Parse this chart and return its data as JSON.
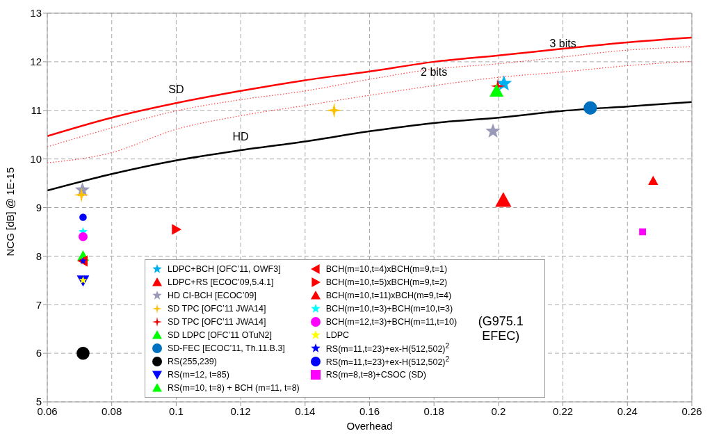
{
  "chart_data": {
    "type": "scatter",
    "xlabel": "Overhead",
    "ylabel": "NCG [dB] @ 1E-15",
    "xlim": [
      0.06,
      0.26
    ],
    "xticks": [
      0.06,
      0.08,
      0.1,
      0.12,
      0.14,
      0.16,
      0.18,
      0.2,
      0.22,
      0.24,
      0.26
    ],
    "ylim": [
      5,
      13
    ],
    "yticks": [
      5,
      6,
      7,
      8,
      9,
      10,
      11,
      12,
      13
    ],
    "grid": true,
    "legend": "bottom",
    "series": [
      {
        "type": "line",
        "color": "#ff0000",
        "line_style": "solid",
        "marker": "none",
        "x": [
          0.06,
          0.08,
          0.1,
          0.12,
          0.14,
          0.16,
          0.18,
          0.2,
          0.22,
          0.24,
          0.26
        ],
        "values": [
          10.47,
          10.85,
          11.15,
          11.4,
          11.62,
          11.8,
          12.0,
          12.13,
          12.27,
          12.4,
          12.5
        ]
      },
      {
        "type": "line",
        "color": "#ff4040",
        "line_style": "dotted",
        "marker": "none",
        "x": [
          0.06,
          0.08,
          0.1,
          0.12,
          0.14,
          0.16,
          0.18,
          0.2,
          0.22,
          0.24,
          0.26
        ],
        "values": [
          10.25,
          10.64,
          10.99,
          11.22,
          11.4,
          11.64,
          11.85,
          11.96,
          12.1,
          12.24,
          12.31
        ]
      },
      {
        "type": "line",
        "color": "#ff4040",
        "line_style": "dotted",
        "marker": "none",
        "x": [
          0.06,
          0.08,
          0.1,
          0.12,
          0.14,
          0.16,
          0.18,
          0.2,
          0.22,
          0.24,
          0.26
        ],
        "values": [
          9.92,
          10.13,
          10.61,
          10.89,
          11.1,
          11.31,
          11.51,
          11.68,
          11.79,
          11.92,
          12.01
        ]
      },
      {
        "type": "line",
        "color": "#000000",
        "line_style": "solid",
        "marker": "none",
        "x": [
          0.06,
          0.08,
          0.1,
          0.12,
          0.14,
          0.16,
          0.18,
          0.2,
          0.22,
          0.24,
          0.26
        ],
        "values": [
          9.35,
          9.69,
          9.97,
          10.18,
          10.36,
          10.57,
          10.74,
          10.85,
          10.99,
          11.08,
          11.17
        ]
      },
      {
        "name": "LDPC+BCH [OFC’11, OWF3]",
        "color": "#00b0f0",
        "marker": "star",
        "x": [
          0.2017
        ],
        "values": [
          11.55
        ]
      },
      {
        "name": "LDPC+RS [ECOC’09,5.4.1]",
        "color": "#ff0000",
        "marker": "triangle",
        "x": [
          0.2015
        ],
        "values": [
          9.15
        ]
      },
      {
        "name": "HD CI-BCH [ECOC’09]",
        "color": "#9a9ab8",
        "marker": "star",
        "x": [
          0.1983,
          0.0709
        ],
        "values": [
          10.57,
          9.36
        ]
      },
      {
        "name": "SD TPC [OFC’11 JWA14]",
        "color": "#ffc000",
        "marker": "star4",
        "x": [
          0.149,
          0.0706
        ],
        "values": [
          11.0,
          9.26
        ]
      },
      {
        "name": "SD TPC [OFC’11 JWA14]",
        "color": "#ff0000",
        "marker": "star4",
        "x": [
          0.1998
        ],
        "values": [
          11.5
        ]
      },
      {
        "name": "SD LDPC [OFC’11 OTuN2]",
        "color": "#00ff00",
        "marker": "triangle",
        "x": [
          0.1994
        ],
        "values": [
          11.4
        ]
      },
      {
        "name": "SD-FEC [ECOC’11, Th.11.B.3]",
        "color": "#0070c0",
        "marker": "circle",
        "x": [
          0.2285
        ],
        "values": [
          11.05
        ]
      },
      {
        "name": "RS(255,239)",
        "color": "#000000",
        "marker": "circle",
        "x": [
          0.0711
        ],
        "values": [
          6.0
        ]
      },
      {
        "name": "RS(m=12, t=85)",
        "color": "#0000ff",
        "marker": "triangle-down",
        "x": [
          0.0711
        ],
        "values": [
          7.5
        ]
      },
      {
        "name": "RS(m=10, t=8)  + BCH (m=11, t=8)",
        "color": "#00ff00",
        "marker": "triangle",
        "x": [
          0.0711
        ],
        "values": [
          8.0
        ]
      },
      {
        "name": "BCH(m=10,t=4)xBCH(m=9,t=1)",
        "color": "#ff0000",
        "marker": "triangle-left",
        "x": [
          0.0711
        ],
        "values": [
          7.9
        ]
      },
      {
        "name": "BCH(m=10,t=5)xBCH(m=9,t=2)",
        "color": "#ff0000",
        "marker": "triangle-right",
        "x": [
          0.1
        ],
        "values": [
          8.55
        ]
      },
      {
        "name": "BCH(m=10,t=11)xBCH(m=9,t=4)",
        "color": "#ff0000",
        "marker": "triangle",
        "x": [
          0.248
        ],
        "values": [
          9.55
        ]
      },
      {
        "name": "BCH(m=10,t=3)+BCH(m=10,t=3)",
        "color": "#00ffff",
        "marker": "star",
        "x": [
          0.0711
        ],
        "values": [
          8.5
        ]
      },
      {
        "name": "BCH(m=12,t=3)+BCH(m=11,t=10)",
        "color": "#ff00ff",
        "marker": "circle",
        "x": [
          0.0711
        ],
        "values": [
          8.4
        ]
      },
      {
        "name": "LDPC",
        "color": "#ffff00",
        "marker": "star",
        "x": [
          0.0711
        ],
        "values": [
          7.5
        ]
      },
      {
        "name": "RS(m=11,t=23)+ex-H(512,502)$^{2}$",
        "color": "#0000ff",
        "marker": "star",
        "x": [
          0.0711
        ],
        "values": [
          7.9
        ]
      },
      {
        "name": "RS(m=11,t=23)+ex-H(512,502)$^{2}$",
        "color": "#0000ff",
        "marker": "circle",
        "x": [
          0.0711
        ],
        "values": [
          8.8
        ]
      },
      {
        "name": "RS(m=8,t=8)+CSOC (SD)",
        "color": "#ff00ff",
        "marker": "square",
        "x": [
          0.2447
        ],
        "values": [
          8.5
        ]
      }
    ],
    "annotations": [
      {
        "text": "SD",
        "x": 0.1,
        "y": 11.15
      },
      {
        "text": "HD",
        "x": 0.12,
        "y": 10.18
      },
      {
        "text": "2 bits",
        "x": 0.18,
        "y": 11.51
      },
      {
        "text": "3 bits",
        "x": 0.22,
        "y": 12.1
      },
      "(G975.1 EFEC)"
    ]
  }
}
